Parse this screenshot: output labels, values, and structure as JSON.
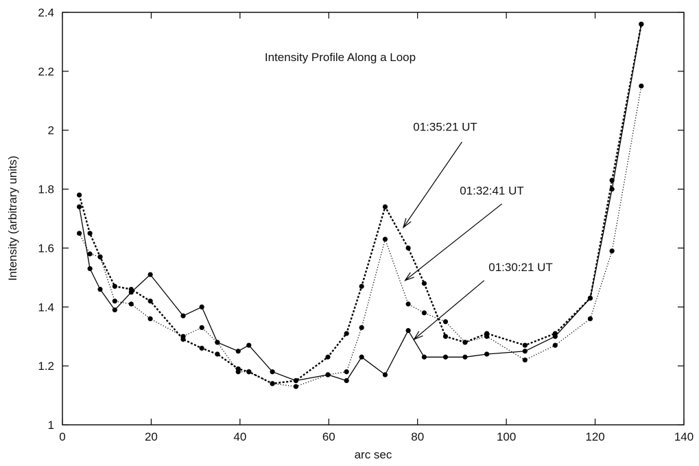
{
  "chart_data": {
    "type": "line",
    "title": "Intensity Profile Along a Loop",
    "xlabel": "arc sec",
    "ylabel": "Intensity (arbitrary units)",
    "xlim": [
      0,
      140
    ],
    "ylim": [
      1,
      2.4
    ],
    "xticks": [
      0,
      20,
      40,
      60,
      80,
      100,
      120,
      140
    ],
    "yticks": [
      1,
      1.2,
      1.4,
      1.6,
      1.8,
      2,
      2.2,
      2.4
    ],
    "xtick_labels": [
      "0",
      "20",
      "40",
      "60",
      "80",
      "100",
      "120",
      "140"
    ],
    "ytick_labels": [
      "1",
      "1.2",
      "1.4",
      "1.6",
      "1.8",
      "2",
      "2.2",
      "2.4"
    ],
    "grid": false,
    "legend": "none",
    "series": [
      {
        "name": "01:30:21 UT",
        "line_style": "solid",
        "points": [
          [
            3.8,
            1.74
          ],
          [
            6.2,
            1.53
          ],
          [
            8.5,
            1.46
          ],
          [
            11.8,
            1.39
          ],
          [
            15.5,
            1.45
          ],
          [
            19.8,
            1.51
          ],
          [
            27.2,
            1.37
          ],
          [
            31.4,
            1.4
          ],
          [
            34.9,
            1.28
          ],
          [
            39.6,
            1.25
          ],
          [
            42.0,
            1.27
          ],
          [
            47.3,
            1.18
          ],
          [
            52.6,
            1.15
          ],
          [
            59.8,
            1.17
          ],
          [
            64.0,
            1.15
          ],
          [
            67.4,
            1.23
          ],
          [
            72.7,
            1.17
          ],
          [
            77.9,
            1.32
          ],
          [
            81.5,
            1.23
          ],
          [
            86.3,
            1.23
          ],
          [
            90.7,
            1.23
          ],
          [
            95.6,
            1.24
          ],
          [
            104.2,
            1.25
          ],
          [
            111.0,
            1.3
          ],
          [
            118.9,
            1.43
          ],
          [
            123.8,
            1.8
          ],
          [
            130.4,
            2.36
          ]
        ]
      },
      {
        "name": "01:32:41 UT",
        "line_style": "dotted",
        "points": [
          [
            3.8,
            1.65
          ],
          [
            6.2,
            1.58
          ],
          [
            8.5,
            1.57
          ],
          [
            11.8,
            1.42
          ],
          [
            15.5,
            1.41
          ],
          [
            19.8,
            1.36
          ],
          [
            27.2,
            1.3
          ],
          [
            31.4,
            1.33
          ],
          [
            34.9,
            1.28
          ],
          [
            39.6,
            1.18
          ],
          [
            42.0,
            1.18
          ],
          [
            47.3,
            1.14
          ],
          [
            52.6,
            1.13
          ],
          [
            59.8,
            1.17
          ],
          [
            64.0,
            1.18
          ],
          [
            67.4,
            1.33
          ],
          [
            72.7,
            1.63
          ],
          [
            77.9,
            1.41
          ],
          [
            81.5,
            1.38
          ],
          [
            86.3,
            1.35
          ],
          [
            90.7,
            1.28
          ],
          [
            95.6,
            1.3
          ],
          [
            104.2,
            1.22
          ],
          [
            111.0,
            1.27
          ],
          [
            118.9,
            1.36
          ],
          [
            123.8,
            1.59
          ],
          [
            130.4,
            2.15
          ]
        ]
      },
      {
        "name": "01:35:21 UT",
        "line_style": "dashed",
        "points": [
          [
            3.8,
            1.78
          ],
          [
            6.2,
            1.65
          ],
          [
            8.5,
            1.57
          ],
          [
            11.8,
            1.47
          ],
          [
            15.5,
            1.46
          ],
          [
            19.8,
            1.42
          ],
          [
            27.2,
            1.29
          ],
          [
            31.4,
            1.26
          ],
          [
            34.9,
            1.24
          ],
          [
            39.6,
            1.19
          ],
          [
            42.0,
            1.18
          ],
          [
            47.3,
            1.14
          ],
          [
            52.6,
            1.15
          ],
          [
            59.8,
            1.23
          ],
          [
            64.0,
            1.31
          ],
          [
            67.4,
            1.47
          ],
          [
            72.7,
            1.74
          ],
          [
            77.9,
            1.6
          ],
          [
            81.5,
            1.48
          ],
          [
            86.3,
            1.3
          ],
          [
            90.7,
            1.28
          ],
          [
            95.6,
            1.31
          ],
          [
            104.2,
            1.27
          ],
          [
            111.0,
            1.31
          ],
          [
            118.9,
            1.43
          ],
          [
            123.8,
            1.83
          ],
          [
            130.4,
            2.36
          ]
        ]
      }
    ],
    "annotations": [
      {
        "text": "01:35:21 UT",
        "label_at": [
          79,
          1.998
        ],
        "arrow_from": [
          90,
          1.96
        ],
        "arrow_to": [
          76.8,
          1.67
        ]
      },
      {
        "text": "01:32:41 UT",
        "label_at": [
          89.5,
          1.782
        ],
        "arrow_from": [
          99,
          1.75
        ],
        "arrow_to": [
          77.2,
          1.49
        ]
      },
      {
        "text": "01:30:21 UT",
        "label_at": [
          96,
          1.522
        ],
        "arrow_from": [
          95,
          1.49
        ],
        "arrow_to": [
          79.2,
          1.29
        ]
      }
    ]
  }
}
